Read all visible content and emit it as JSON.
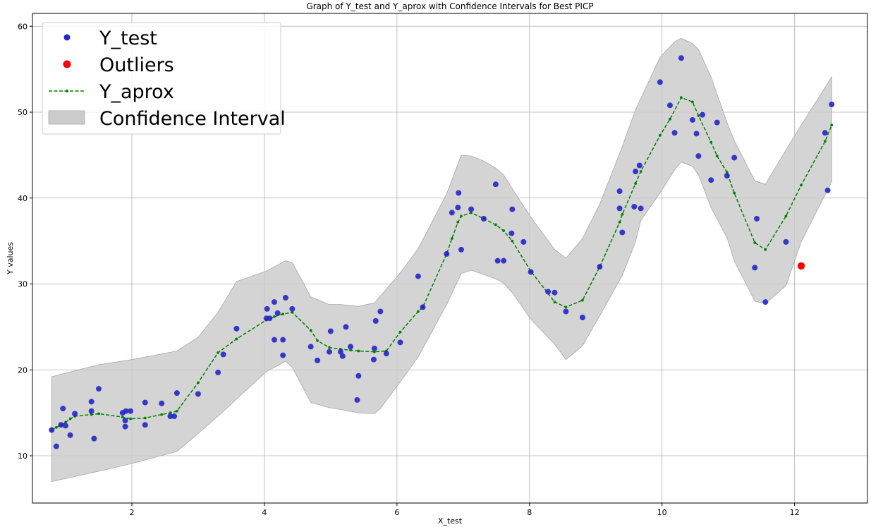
{
  "chart_data": {
    "type": "scatter",
    "title": "Graph of Y_test and Y_aprox with Confidence Intervals for Best PICP",
    "xlabel": "X_test",
    "ylabel": "Y values",
    "xlim": [
      0.5,
      13.1
    ],
    "ylim": [
      4.5,
      61.5
    ],
    "xticks": [
      2,
      4,
      6,
      8,
      10,
      12
    ],
    "yticks": [
      10,
      20,
      30,
      40,
      50,
      60
    ],
    "grid": true,
    "legend_position": "top-left",
    "colors": {
      "y_test": "#2525c8",
      "outliers": "#ff0000",
      "y_aprox": "#008000",
      "confidence": "#cccccc",
      "confidence_edge": "#a8a8a8"
    },
    "series": [
      {
        "name": "Y_test",
        "kind": "points",
        "points": [
          [
            0.79,
            13.0
          ],
          [
            0.86,
            11.1
          ],
          [
            0.93,
            13.6
          ],
          [
            0.96,
            15.5
          ],
          [
            1.0,
            13.5
          ],
          [
            1.07,
            12.4
          ],
          [
            1.14,
            14.9
          ],
          [
            1.39,
            16.3
          ],
          [
            1.39,
            15.2
          ],
          [
            1.43,
            12.0
          ],
          [
            1.5,
            17.8
          ],
          [
            1.86,
            15.0
          ],
          [
            1.9,
            14.1
          ],
          [
            1.9,
            13.4
          ],
          [
            1.91,
            15.2
          ],
          [
            1.98,
            15.2
          ],
          [
            2.2,
            13.6
          ],
          [
            2.2,
            16.2
          ],
          [
            2.45,
            16.1
          ],
          [
            2.58,
            14.6
          ],
          [
            2.64,
            14.6
          ],
          [
            2.68,
            17.3
          ],
          [
            3.0,
            17.2
          ],
          [
            3.3,
            19.7
          ],
          [
            3.38,
            21.8
          ],
          [
            3.58,
            24.8
          ],
          [
            4.03,
            26.0
          ],
          [
            4.04,
            27.1
          ],
          [
            4.08,
            26.0
          ],
          [
            4.15,
            27.9
          ],
          [
            4.15,
            23.5
          ],
          [
            4.2,
            26.6
          ],
          [
            4.28,
            23.5
          ],
          [
            4.28,
            21.7
          ],
          [
            4.32,
            28.4
          ],
          [
            4.42,
            27.1
          ],
          [
            4.7,
            22.7
          ],
          [
            4.8,
            21.1
          ],
          [
            4.98,
            22.1
          ],
          [
            5.0,
            24.5
          ],
          [
            5.15,
            22.1
          ],
          [
            5.18,
            21.6
          ],
          [
            5.23,
            25.0
          ],
          [
            5.3,
            22.7
          ],
          [
            5.4,
            16.5
          ],
          [
            5.42,
            19.3
          ],
          [
            5.65,
            21.2
          ],
          [
            5.66,
            22.5
          ],
          [
            5.68,
            25.7
          ],
          [
            5.75,
            26.8
          ],
          [
            5.84,
            21.9
          ],
          [
            6.05,
            23.2
          ],
          [
            6.32,
            30.9
          ],
          [
            6.39,
            27.3
          ],
          [
            6.75,
            33.5
          ],
          [
            6.83,
            38.3
          ],
          [
            6.92,
            38.9
          ],
          [
            6.93,
            40.6
          ],
          [
            6.97,
            34.0
          ],
          [
            7.12,
            38.7
          ],
          [
            7.31,
            37.6
          ],
          [
            7.49,
            41.6
          ],
          [
            7.52,
            32.7
          ],
          [
            7.61,
            32.7
          ],
          [
            7.73,
            35.9
          ],
          [
            7.74,
            38.7
          ],
          [
            7.91,
            34.9
          ],
          [
            8.02,
            31.4
          ],
          [
            8.28,
            29.1
          ],
          [
            8.38,
            29.0
          ],
          [
            8.55,
            26.8
          ],
          [
            8.8,
            26.1
          ],
          [
            9.06,
            32.0
          ],
          [
            9.36,
            40.8
          ],
          [
            9.36,
            38.8
          ],
          [
            9.4,
            36.0
          ],
          [
            9.58,
            39.0
          ],
          [
            9.6,
            43.1
          ],
          [
            9.66,
            43.8
          ],
          [
            9.68,
            38.8
          ],
          [
            9.97,
            53.5
          ],
          [
            10.12,
            50.8
          ],
          [
            10.19,
            47.6
          ],
          [
            10.29,
            56.3
          ],
          [
            10.46,
            49.1
          ],
          [
            10.52,
            47.5
          ],
          [
            10.55,
            44.9
          ],
          [
            10.61,
            49.7
          ],
          [
            10.74,
            42.1
          ],
          [
            10.83,
            48.8
          ],
          [
            10.98,
            42.6
          ],
          [
            11.09,
            44.7
          ],
          [
            11.4,
            31.9
          ],
          [
            11.43,
            37.6
          ],
          [
            11.56,
            27.9
          ],
          [
            11.87,
            34.9
          ],
          [
            12.46,
            47.6
          ],
          [
            12.5,
            40.9
          ],
          [
            12.56,
            50.9
          ]
        ]
      },
      {
        "name": "Outliers",
        "kind": "points",
        "points": [
          [
            12.1,
            32.1
          ]
        ]
      },
      {
        "name": "Y_aprox",
        "kind": "line",
        "points": [
          [
            0.79,
            13.0
          ],
          [
            0.86,
            13.3
          ],
          [
            0.93,
            13.6
          ],
          [
            1.0,
            13.9
          ],
          [
            1.07,
            14.3
          ],
          [
            1.14,
            14.6
          ],
          [
            1.39,
            14.8
          ],
          [
            1.5,
            14.9
          ],
          [
            1.86,
            14.5
          ],
          [
            1.98,
            14.3
          ],
          [
            2.2,
            14.4
          ],
          [
            2.45,
            14.8
          ],
          [
            2.58,
            15.0
          ],
          [
            2.68,
            15.2
          ],
          [
            3.0,
            18.5
          ],
          [
            3.3,
            22.0
          ],
          [
            3.58,
            23.6
          ],
          [
            4.03,
            25.8
          ],
          [
            4.15,
            26.2
          ],
          [
            4.28,
            26.5
          ],
          [
            4.42,
            26.7
          ],
          [
            4.7,
            24.6
          ],
          [
            4.8,
            23.4
          ],
          [
            4.98,
            22.6
          ],
          [
            5.15,
            22.4
          ],
          [
            5.3,
            22.3
          ],
          [
            5.42,
            22.2
          ],
          [
            5.66,
            22.1
          ],
          [
            5.84,
            22.2
          ],
          [
            6.05,
            24.4
          ],
          [
            6.32,
            26.8
          ],
          [
            6.39,
            27.3
          ],
          [
            6.75,
            33.5
          ],
          [
            6.83,
            35.3
          ],
          [
            6.92,
            37.2
          ],
          [
            6.97,
            37.9
          ],
          [
            7.12,
            38.3
          ],
          [
            7.31,
            37.6
          ],
          [
            7.49,
            36.9
          ],
          [
            7.61,
            36.2
          ],
          [
            7.74,
            35.0
          ],
          [
            8.02,
            31.5
          ],
          [
            8.38,
            27.9
          ],
          [
            8.55,
            27.3
          ],
          [
            8.8,
            28.1
          ],
          [
            9.06,
            32.0
          ],
          [
            9.36,
            37.2
          ],
          [
            9.4,
            38.1
          ],
          [
            9.6,
            41.7
          ],
          [
            9.68,
            43.1
          ],
          [
            9.97,
            47.3
          ],
          [
            10.12,
            49.2
          ],
          [
            10.29,
            51.7
          ],
          [
            10.46,
            51.2
          ],
          [
            10.55,
            49.6
          ],
          [
            10.74,
            46.5
          ],
          [
            10.83,
            44.9
          ],
          [
            10.98,
            43.0
          ],
          [
            11.09,
            40.6
          ],
          [
            11.4,
            34.8
          ],
          [
            11.56,
            34.0
          ],
          [
            11.87,
            37.9
          ],
          [
            12.1,
            41.5
          ],
          [
            12.46,
            46.6
          ],
          [
            12.56,
            48.5
          ]
        ]
      },
      {
        "name": "Confidence Interval",
        "kind": "band",
        "x": [
          0.79,
          1.5,
          2.0,
          2.68,
          3.0,
          3.3,
          3.58,
          4.03,
          4.32,
          4.42,
          4.7,
          4.98,
          5.15,
          5.42,
          5.66,
          5.75,
          6.05,
          6.32,
          6.75,
          6.97,
          7.12,
          7.31,
          7.49,
          7.61,
          7.74,
          8.02,
          8.38,
          8.55,
          8.8,
          9.06,
          9.4,
          9.6,
          9.68,
          9.97,
          10.19,
          10.29,
          10.46,
          10.55,
          10.74,
          10.98,
          11.09,
          11.4,
          11.56,
          11.87,
          12.1,
          12.56
        ],
        "upper": [
          19.2,
          20.6,
          21.2,
          22.2,
          23.8,
          26.7,
          30.3,
          31.5,
          32.7,
          32.5,
          28.5,
          27.6,
          27.6,
          27.4,
          27.8,
          28.6,
          31.3,
          34.1,
          40.5,
          45.0,
          44.9,
          44.3,
          43.5,
          42.7,
          41.1,
          37.8,
          34.0,
          33.0,
          35.3,
          39.3,
          46.0,
          50.3,
          51.6,
          56.4,
          58.2,
          58.6,
          58.0,
          57.3,
          54.1,
          48.8,
          46.7,
          42.0,
          41.6,
          45.6,
          48.5,
          54.1
        ],
        "lower": [
          7.0,
          8.2,
          9.1,
          10.5,
          12.6,
          14.6,
          16.6,
          19.8,
          21.0,
          20.3,
          16.2,
          15.6,
          15.4,
          15.0,
          14.9,
          15.5,
          18.6,
          21.5,
          27.6,
          31.2,
          31.6,
          31.1,
          30.6,
          30.1,
          29.0,
          25.9,
          23.0,
          21.2,
          22.8,
          26.3,
          31.0,
          34.9,
          37.4,
          40.6,
          43.3,
          44.2,
          43.7,
          42.7,
          38.9,
          35.4,
          32.7,
          28.0,
          27.7,
          29.8,
          34.9,
          41.9
        ]
      }
    ]
  }
}
